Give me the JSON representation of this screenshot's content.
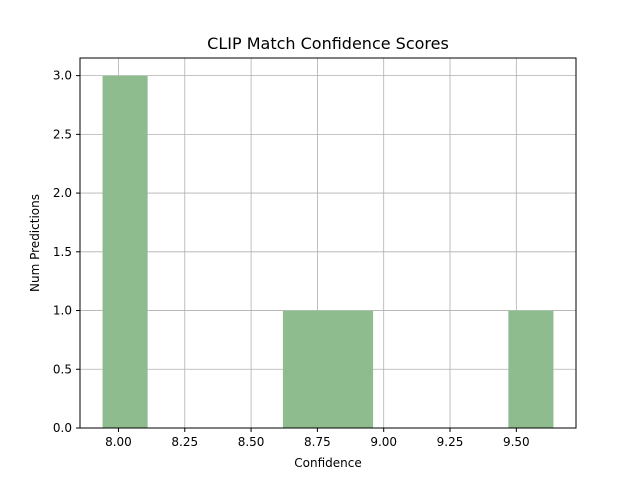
{
  "chart_data": {
    "type": "bar",
    "title": "CLIP Match Confidence Scores",
    "xlabel": "Confidence",
    "ylabel": "Num Predictions",
    "bins": [
      {
        "x0": 7.94,
        "x1": 8.11,
        "value": 3
      },
      {
        "x0": 8.11,
        "x1": 8.28,
        "value": 0
      },
      {
        "x0": 8.28,
        "x1": 8.45,
        "value": 0
      },
      {
        "x0": 8.45,
        "x1": 8.62,
        "value": 0
      },
      {
        "x0": 8.62,
        "x1": 8.79,
        "value": 1
      },
      {
        "x0": 8.79,
        "x1": 8.96,
        "value": 1
      },
      {
        "x0": 8.96,
        "x1": 9.13,
        "value": 0
      },
      {
        "x0": 9.13,
        "x1": 9.3,
        "value": 0
      },
      {
        "x0": 9.3,
        "x1": 9.47,
        "value": 0
      },
      {
        "x0": 9.47,
        "x1": 9.64,
        "value": 1
      }
    ],
    "xlim": [
      7.855,
      9.725
    ],
    "ylim": [
      0,
      3.15
    ],
    "xticks": [
      {
        "value": 8.0,
        "label": "8.00"
      },
      {
        "value": 8.25,
        "label": "8.25"
      },
      {
        "value": 8.5,
        "label": "8.50"
      },
      {
        "value": 8.75,
        "label": "8.75"
      },
      {
        "value": 9.0,
        "label": "9.00"
      },
      {
        "value": 9.25,
        "label": "9.25"
      },
      {
        "value": 9.5,
        "label": "9.50"
      }
    ],
    "yticks": [
      {
        "value": 0.0,
        "label": "0.0"
      },
      {
        "value": 0.5,
        "label": "0.5"
      },
      {
        "value": 1.0,
        "label": "1.0"
      },
      {
        "value": 1.5,
        "label": "1.5"
      },
      {
        "value": 2.0,
        "label": "2.0"
      },
      {
        "value": 2.5,
        "label": "2.5"
      },
      {
        "value": 3.0,
        "label": "3.0"
      }
    ],
    "grid": true,
    "colors": {
      "bar": "#8fbc8f",
      "grid": "#b0b0b0",
      "axis": "#000000"
    }
  }
}
